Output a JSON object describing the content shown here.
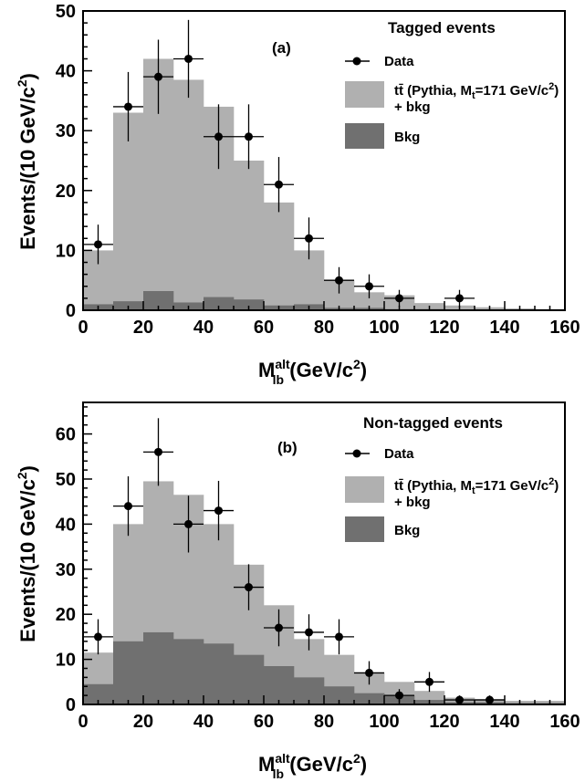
{
  "chart_data": [
    {
      "type": "bar",
      "panel_label": "(a)",
      "legend_title": "Tagged events",
      "legend_placement": "top-right",
      "legend": {
        "data": "Data",
        "signal_line1": "tt̄ (Pythia, M",
        "signal_sub": "t",
        "signal_mid": "=171 GeV/c",
        "signal_sup": "2",
        "signal_end": ")",
        "signal_line2": "+ bkg",
        "bkg": "Bkg"
      },
      "xlabel": "M",
      "xlabel_sup": "alt",
      "xlabel_sub": "lb",
      "xlabel_units": " (GeV/c",
      "xlabel_units_sup": "2",
      "xlabel_units_end": ")",
      "ylabel": "Events/(10 GeV/c",
      "ylabel_sup": "2",
      "ylabel_end": ")",
      "xlim": [
        0,
        160
      ],
      "ylim": [
        0,
        50
      ],
      "xticks": [
        "0",
        "20",
        "40",
        "60",
        "80",
        "100",
        "120",
        "140",
        "160"
      ],
      "yticks": [
        "0",
        "10",
        "20",
        "30",
        "40",
        "50"
      ],
      "bin_edges": [
        0,
        10,
        20,
        30,
        40,
        50,
        60,
        70,
        80,
        90,
        100,
        110,
        120,
        130,
        140,
        150,
        160
      ],
      "series": [
        {
          "name": "tt̄ (Pythia, Mt=171 GeV/c2) + bkg",
          "values": [
            10,
            33,
            42,
            38.5,
            34,
            25,
            18,
            10,
            5,
            3,
            2.5,
            1.2,
            0.8,
            0.5,
            0.3,
            0.2
          ],
          "color": "#b0b0b0"
        },
        {
          "name": "Bkg",
          "values": [
            1,
            1.5,
            3.2,
            1.3,
            2.2,
            1.8,
            0.8,
            1,
            0.4,
            0.4,
            0.2,
            0.2,
            0.1,
            0.1,
            0.1,
            0.1
          ],
          "color": "#707070"
        },
        {
          "name": "Data",
          "x": [
            5,
            15,
            25,
            35,
            45,
            55,
            65,
            75,
            85,
            95,
            105,
            125
          ],
          "y": [
            11,
            34,
            39,
            42,
            29,
            29,
            21,
            12,
            5,
            4,
            2,
            2
          ],
          "yerr": [
            3.3,
            5.8,
            6.2,
            6.5,
            5.4,
            5.4,
            4.6,
            3.5,
            2.2,
            2.0,
            1.4,
            1.4
          ]
        }
      ]
    },
    {
      "type": "bar",
      "panel_label": "(b)",
      "legend_title": "Non-tagged events",
      "legend_placement": "top-right",
      "legend": {
        "data": "Data",
        "signal_line1": "tt̄ (Pythia, M",
        "signal_sub": "t",
        "signal_mid": "=171 GeV/c",
        "signal_sup": "2",
        "signal_end": ")",
        "signal_line2": "+ bkg",
        "bkg": "Bkg"
      },
      "xlabel": "M",
      "xlabel_sup": "alt",
      "xlabel_sub": "lb",
      "xlabel_units": " (GeV/c",
      "xlabel_units_sup": "2",
      "xlabel_units_end": ")",
      "ylabel": "Events/(10 GeV/c",
      "ylabel_sup": "2",
      "ylabel_end": ")",
      "xlim": [
        0,
        160
      ],
      "ylim": [
        0,
        67
      ],
      "xticks": [
        "0",
        "20",
        "40",
        "60",
        "80",
        "100",
        "120",
        "140",
        "160"
      ],
      "yticks": [
        "0",
        "10",
        "20",
        "30",
        "40",
        "50",
        "60"
      ],
      "bin_edges": [
        0,
        10,
        20,
        30,
        40,
        50,
        60,
        70,
        80,
        90,
        100,
        110,
        120,
        130,
        140,
        150,
        160
      ],
      "series": [
        {
          "name": "tt̄ (Pythia, Mt=171 GeV/c2) + bkg",
          "values": [
            11.5,
            40,
            49.5,
            46.5,
            40,
            31,
            22,
            14.5,
            11,
            7,
            5,
            3,
            1.5,
            1.2,
            0.8,
            0.8
          ],
          "color": "#b0b0b0"
        },
        {
          "name": "Bkg",
          "values": [
            4.5,
            14,
            16,
            14.5,
            13.5,
            11,
            8.5,
            6,
            4,
            2.5,
            2,
            1,
            0.5,
            0.5,
            0.3,
            0.3
          ],
          "color": "#707070"
        },
        {
          "name": "Data",
          "x": [
            5,
            15,
            25,
            35,
            45,
            55,
            65,
            75,
            85,
            95,
            105,
            115,
            125,
            135
          ],
          "y": [
            15,
            44,
            56,
            40,
            43,
            26,
            17,
            16,
            15,
            7,
            2,
            5,
            1,
            1
          ],
          "yerr": [
            3.9,
            6.6,
            7.5,
            6.3,
            6.6,
            5.1,
            4.1,
            4.0,
            3.9,
            2.6,
            1.4,
            2.2,
            1.0,
            1.0
          ]
        }
      ]
    }
  ]
}
